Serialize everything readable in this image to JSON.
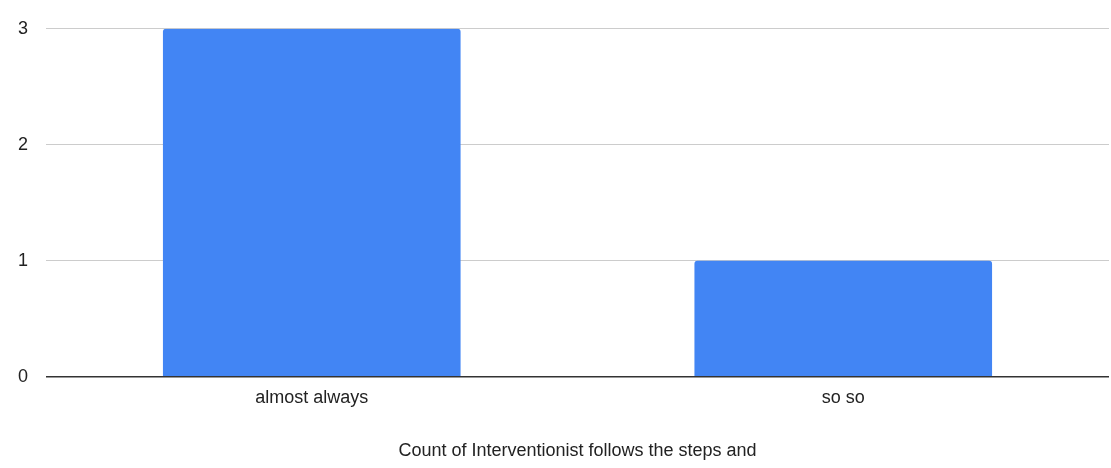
{
  "chart_data": {
    "type": "bar",
    "xlabel": "Count of Interventionist follows the steps and",
    "categories": [
      "almost always",
      "so so"
    ],
    "values": [
      3,
      1
    ],
    "color": "#4285f4",
    "ylim": [
      0,
      3
    ],
    "yticks": [
      0,
      1,
      2,
      3
    ],
    "grid": "y"
  }
}
